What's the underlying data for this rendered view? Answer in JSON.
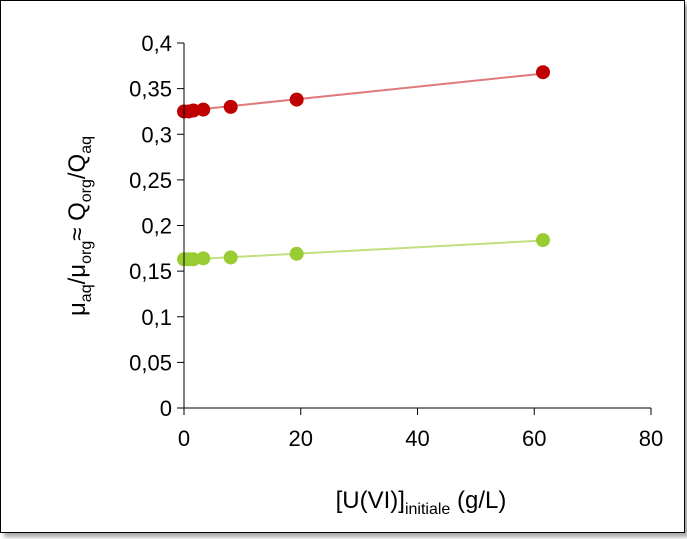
{
  "chart_data": {
    "type": "scatter",
    "title": "",
    "xlim": [
      0,
      80
    ],
    "ylim": [
      0,
      0.4
    ],
    "xticks": [
      0,
      20,
      40,
      60,
      80
    ],
    "xtick_labels": [
      "0",
      "20",
      "40",
      "60",
      "80"
    ],
    "yticks": [
      0,
      0.05,
      0.1,
      0.15,
      0.2,
      0.25,
      0.3,
      0.35,
      0.4
    ],
    "ytick_labels": [
      "0",
      "0,05",
      "0,1",
      "0,15",
      "0,2",
      "0,25",
      "0,3",
      "0,35",
      "0,4"
    ],
    "xlabel": {
      "main": "[U(VI)]",
      "sub": "initiale",
      "tail": " (g/L)"
    },
    "ylabel": {
      "p1": "μ",
      "s1": "aq",
      "p2": "/μ",
      "s2": "org",
      "p3": "≈ Q",
      "s3": "org",
      "p4": "/Q",
      "s4": "aq"
    },
    "grid": false,
    "legend": false,
    "series": [
      {
        "color": "#c00000",
        "line_color": "#e07a7a",
        "x": [
          0,
          0.8,
          1.6,
          3.3,
          8.0,
          19.3,
          61.5
        ],
        "y": [
          0.325,
          0.325,
          0.326,
          0.327,
          0.33,
          0.338,
          0.368
        ],
        "trend": [
          [
            0,
            0.3255
          ],
          [
            61.5,
            0.3665
          ]
        ]
      },
      {
        "color": "#99cc33",
        "line_color": "#c2e07f",
        "x": [
          0,
          0.8,
          1.6,
          3.3,
          8.0,
          19.3,
          61.5
        ],
        "y": [
          0.163,
          0.163,
          0.163,
          0.164,
          0.165,
          0.169,
          0.184
        ],
        "trend": [
          [
            0,
            0.1625
          ],
          [
            61.5,
            0.1835
          ]
        ]
      }
    ]
  }
}
